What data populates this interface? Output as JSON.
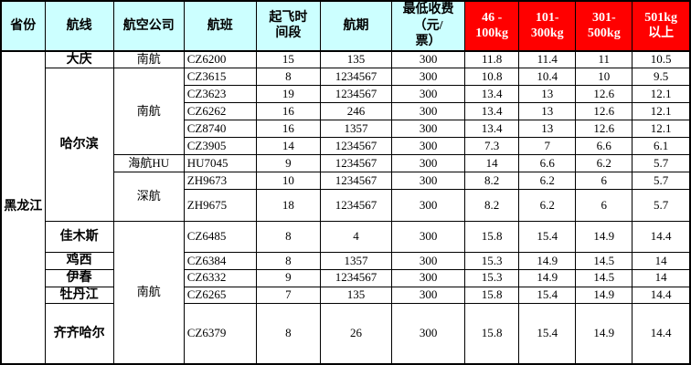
{
  "colors": {
    "header_bg": "#CCFFFF",
    "tier_header_bg": "#FF0000",
    "tier_header_text": "#FFFFFF",
    "border": "#000000",
    "body_text": "#000000"
  },
  "header": {
    "province": "省份",
    "route": "航线",
    "airline": "航空公司",
    "flight": "航班",
    "time": "起飞时\n间段",
    "days": "航期",
    "min_charge": "最低收费\n（元/\n票）",
    "tier1": "46 -\n100kg",
    "tier2": "101-\n300kg",
    "tier3": "301-\n500kg",
    "tier4": "501kg\n以上"
  },
  "province": "黑龙江",
  "rows": [
    {
      "route": "大庆",
      "airline": "南航",
      "flight": "CZ6200",
      "time": "15",
      "days": "135",
      "min": "300",
      "rates": [
        "11.8",
        "11.4",
        "11",
        "10.5"
      ]
    },
    {
      "route": "哈尔滨",
      "airline": "南航",
      "flight": "CZ3615",
      "time": "8",
      "days": "1234567",
      "min": "300",
      "rates": [
        "10.8",
        "10.4",
        "10",
        "9.5"
      ]
    },
    {
      "flight": "CZ3623",
      "time": "19",
      "days": "1234567",
      "min": "300",
      "rates": [
        "13.4",
        "13",
        "12.6",
        "12.1"
      ]
    },
    {
      "flight": "CZ6262",
      "time": "16",
      "days": "246",
      "min": "300",
      "rates": [
        "13.4",
        "13",
        "12.6",
        "12.1"
      ]
    },
    {
      "flight": "CZ8740",
      "time": "16",
      "days": "1357",
      "min": "300",
      "rates": [
        "13.4",
        "13",
        "12.6",
        "12.1"
      ]
    },
    {
      "flight": "CZ3905",
      "time": "14",
      "days": "1234567",
      "min": "300",
      "rates": [
        "7.3",
        "7",
        "6.6",
        "6.1"
      ]
    },
    {
      "airline": "海航HU",
      "flight": "HU7045",
      "time": "9",
      "days": "1234567",
      "min": "300",
      "rates": [
        "14",
        "6.6",
        "6.2",
        "5.7"
      ]
    },
    {
      "airline": "深航",
      "flight": "ZH9673",
      "time": "10",
      "days": "1234567",
      "min": "300",
      "rates": [
        "8.2",
        "6.2",
        "6",
        "5.7"
      ]
    },
    {
      "flight": "ZH9675",
      "time": "18",
      "days": "1234567",
      "min": "300",
      "rates": [
        "8.2",
        "6.2",
        "6",
        "5.7"
      ]
    },
    {
      "route": "佳木斯",
      "airline": "南航",
      "flight": "CZ6485",
      "time": "8",
      "days": "4",
      "min": "300",
      "rates": [
        "15.8",
        "15.4",
        "14.9",
        "14.4"
      ]
    },
    {
      "route": "鸡西",
      "flight": "CZ6384",
      "time": "8",
      "days": "1357",
      "min": "300",
      "rates": [
        "15.3",
        "14.9",
        "14.5",
        "14"
      ]
    },
    {
      "route": "伊春",
      "flight": "CZ6332",
      "time": "9",
      "days": "1234567",
      "min": "300",
      "rates": [
        "15.3",
        "14.9",
        "14.5",
        "14"
      ]
    },
    {
      "route": "牡丹江",
      "flight": "CZ6265",
      "time": "7",
      "days": "135",
      "min": "300",
      "rates": [
        "15.8",
        "15.4",
        "14.9",
        "14.4"
      ]
    },
    {
      "route": "齐齐哈尔",
      "flight": "CZ6379",
      "time": "8",
      "days": "26",
      "min": "300",
      "rates": [
        "15.8",
        "15.4",
        "14.9",
        "14.4"
      ]
    }
  ]
}
